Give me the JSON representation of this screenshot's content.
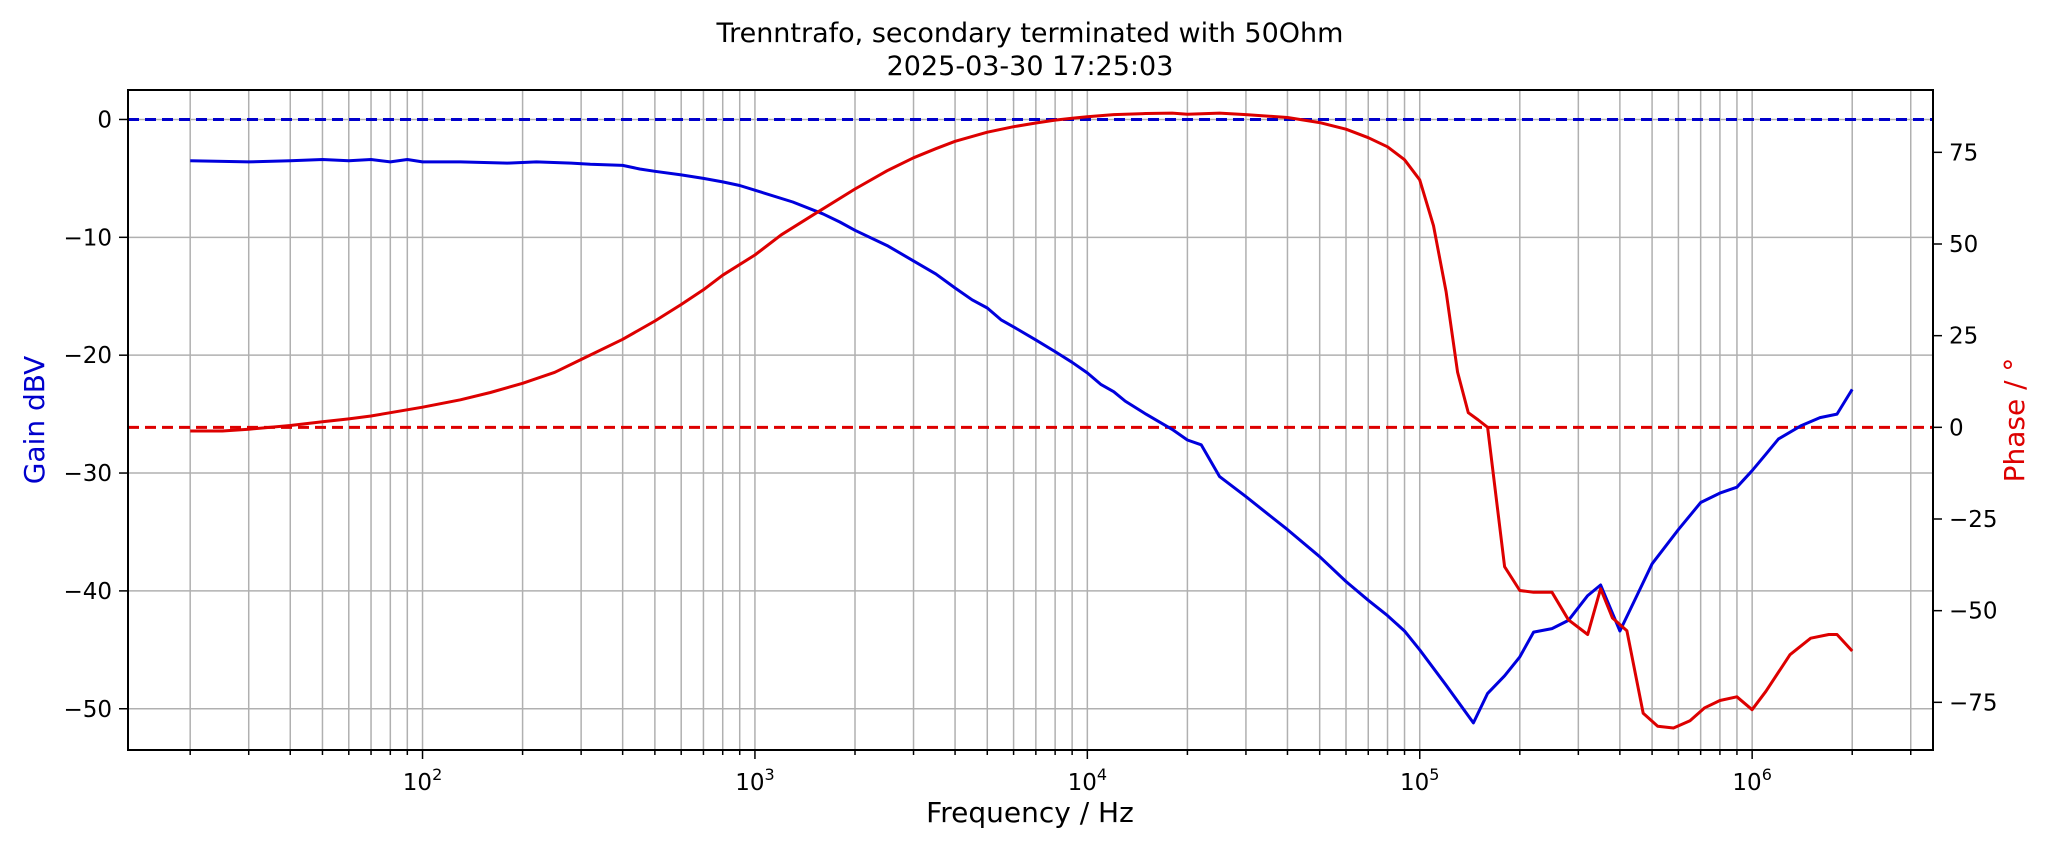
{
  "chart_data": {
    "type": "line",
    "title": "Trenntrafo, secondary terminated with 50Ohm",
    "subtitle": "2025-03-30 17:25:03",
    "xlabel": "Frequency / Hz",
    "ylabel": "Gain dBV",
    "y2label": "Phase / °",
    "xscale": "log",
    "xlim": [
      13,
      3500000
    ],
    "ylim": [
      -53.5,
      2.5
    ],
    "y2lim": [
      -88,
      92
    ],
    "grid": true,
    "x_ticks": [
      {
        "value": 100,
        "base": "10",
        "exp": "2"
      },
      {
        "value": 1000,
        "base": "10",
        "exp": "3"
      },
      {
        "value": 10000,
        "base": "10",
        "exp": "4"
      },
      {
        "value": 100000,
        "base": "10",
        "exp": "5"
      },
      {
        "value": 1000000,
        "base": "10",
        "exp": "6"
      }
    ],
    "y_ticks": [
      0,
      -10,
      -20,
      -30,
      -40,
      -50
    ],
    "y2_ticks": [
      75,
      50,
      25,
      0,
      -25,
      -50,
      -75
    ],
    "reference_lines": [
      {
        "axis": "left",
        "value": 0,
        "color": "#0000cc",
        "style": "dashed"
      },
      {
        "axis": "right",
        "value": 0,
        "color": "#dd0000",
        "style": "dashed"
      }
    ],
    "series": [
      {
        "axis": "left",
        "color": "#0000dd",
        "x": [
          20,
          30,
          40,
          50,
          60,
          70,
          80,
          90,
          100,
          130,
          180,
          220,
          280,
          320,
          400,
          450,
          500,
          600,
          700,
          800,
          900,
          1000,
          1300,
          1600,
          1800,
          2000,
          2500,
          3000,
          3500,
          4000,
          4500,
          5000,
          5500,
          6000,
          7000,
          8000,
          9000,
          10000,
          11000,
          12000,
          13000,
          15000,
          18000,
          20000,
          22000,
          25000,
          30000,
          35000,
          40000,
          50000,
          60000,
          70000,
          80000,
          90000,
          100000,
          120000,
          145000,
          160000,
          180000,
          200000,
          220000,
          250000,
          280000,
          320000,
          350000,
          400000,
          450000,
          500000,
          600000,
          700000,
          800000,
          900000,
          1000000,
          1100000,
          1200000,
          1400000,
          1600000,
          1800000,
          2000000
        ],
        "y": [
          -3.5,
          -3.6,
          -3.5,
          -3.4,
          -3.5,
          -3.4,
          -3.6,
          -3.4,
          -3.6,
          -3.6,
          -3.7,
          -3.6,
          -3.7,
          -3.8,
          -3.9,
          -4.2,
          -4.4,
          -4.7,
          -5.0,
          -5.3,
          -5.6,
          -6.0,
          -7.0,
          -8.0,
          -8.7,
          -9.4,
          -10.7,
          -12.0,
          -13.1,
          -14.3,
          -15.3,
          -16.0,
          -17.0,
          -17.6,
          -18.7,
          -19.7,
          -20.6,
          -21.5,
          -22.5,
          -23.1,
          -23.9,
          -25.0,
          -26.3,
          -27.2,
          -27.6,
          -30.3,
          -32.0,
          -33.5,
          -34.8,
          -37.1,
          -39.2,
          -40.8,
          -42.1,
          -43.4,
          -45.0,
          -48.0,
          -51.2,
          -48.7,
          -47.2,
          -45.6,
          -43.5,
          -43.2,
          -42.5,
          -40.4,
          -39.5,
          -43.4,
          -40.4,
          -37.7,
          -34.8,
          -32.5,
          -31.7,
          -31.2,
          -29.8,
          -28.4,
          -27.1,
          -26.0,
          -25.3,
          -25.0,
          -22.9
        ]
      },
      {
        "axis": "right",
        "color": "#dd0000",
        "x": [
          20,
          25,
          30,
          40,
          50,
          60,
          70,
          80,
          100,
          130,
          160,
          200,
          250,
          300,
          400,
          500,
          600,
          700,
          800,
          1000,
          1200,
          1500,
          2000,
          2500,
          3000,
          3500,
          4000,
          5000,
          6000,
          7000,
          8000,
          9000,
          10000,
          12000,
          15000,
          18000,
          20000,
          25000,
          30000,
          40000,
          50000,
          60000,
          70000,
          80000,
          90000,
          100000,
          110000,
          120000,
          130000,
          140000,
          150000,
          160000,
          180000,
          200000,
          220000,
          250000,
          280000,
          320000,
          350000,
          380000,
          420000,
          470000,
          520000,
          580000,
          650000,
          720000,
          800000,
          900000,
          1000000,
          1100000,
          1300000,
          1500000,
          1700000,
          1800000,
          2000000
        ],
        "y": [
          -1,
          -1,
          -0.5,
          0.5,
          1.5,
          2.3,
          3.1,
          4,
          5.5,
          7.5,
          9.5,
          12,
          15,
          18.5,
          24,
          29,
          33.5,
          37.5,
          41.5,
          47,
          52.5,
          58,
          65,
          70,
          73.5,
          76,
          78,
          80.5,
          82,
          83,
          83.8,
          84.3,
          84.7,
          85.3,
          85.6,
          85.7,
          85.4,
          85.7,
          85.3,
          84.5,
          83.1,
          81.3,
          79,
          76.5,
          73,
          67.5,
          55,
          37,
          15,
          4,
          2,
          0,
          -38,
          -44.5,
          -45,
          -45,
          -52.5,
          -56.5,
          -44,
          -52,
          -55.5,
          -78,
          -81.5,
          -82,
          -80,
          -76.5,
          -74.5,
          -73.5,
          -77,
          -72,
          -62,
          -57.5,
          -56.5,
          -56.5,
          -61
        ]
      }
    ]
  }
}
